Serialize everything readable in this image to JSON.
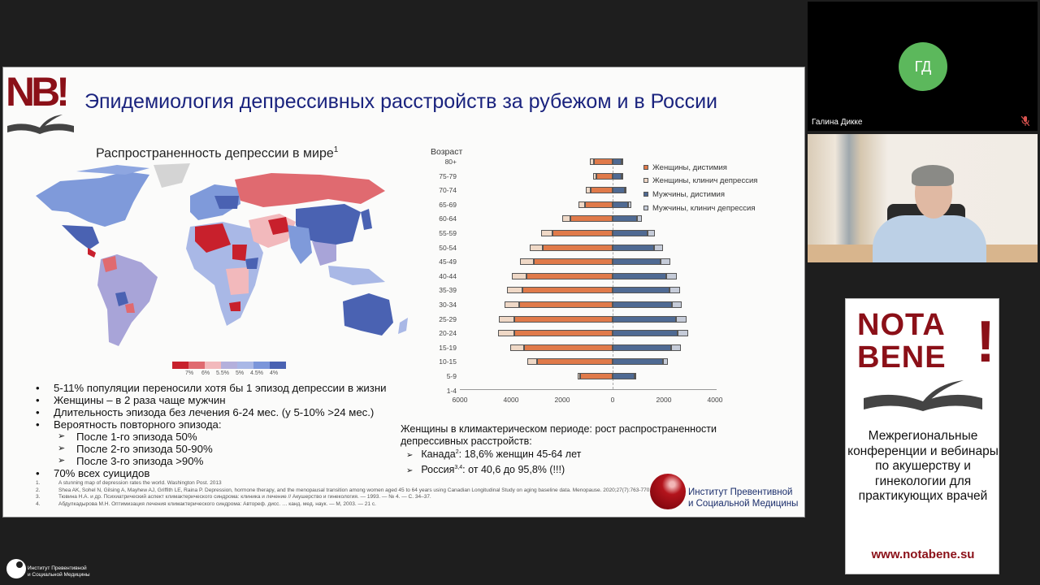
{
  "slide": {
    "logo": "NB!",
    "title": "Эпидемиология депрессивных расстройств за рубежом и в России",
    "map": {
      "title": "Распространенность депрессии в мире",
      "title_sup": "1",
      "scale_colors": [
        "#c8202c",
        "#e06a70",
        "#f2b9bc",
        "#b4b0dc",
        "#a9b8e6",
        "#7b96da",
        "#4a62b2"
      ],
      "scale_labels": [
        "7%",
        "6%",
        "5.5%",
        "5%",
        "4.5%",
        "4%"
      ]
    },
    "bullets": [
      {
        "text": "5-11% популяции переносили хотя бы 1 эпизод депрессии в жизни",
        "level": 1
      },
      {
        "text": "Женщины – в 2 раза чаще мужчин",
        "level": 1
      },
      {
        "text": "Длительность эпизода без лечения 6-24 мес. (у 5-10% >24 мес.)",
        "level": 1
      },
      {
        "text": "Вероятность повторного эпизода:",
        "level": 1
      },
      {
        "text": "После 1-го эпизода 50%",
        "level": 2
      },
      {
        "text": "После 2-го эпизода 50-90%",
        "level": 2
      },
      {
        "text": "После 3-го эпизода >90%",
        "level": 2
      },
      {
        "text": "70% всех суицидов",
        "level": 1
      }
    ],
    "references": [
      {
        "n": "1.",
        "text": "A stunning map of depression rates the world. Washington Post. 2013"
      },
      {
        "n": "2.",
        "text": "Shea AK, Sohel N, Gilsing A, Mayhew AJ, Griffith LE, Raina P. Depression, hormone therapy, and the menopausal transition among women aged 45 to 64 years using Canadian Longitudinal Study on aging baseline data. Menopause. 2020;27(7):763-770."
      },
      {
        "n": "3.",
        "text": "Тювина Н.А. и др. Психиатрический аспект климактерического синдрома: клиника и лечение // Акушерство и гинекология. — 1993. — № 4. — С. 34–37."
      },
      {
        "n": "4.",
        "text": "Абдулкадырова М.Н. Оптимизация лечения климактерического синдрома: Автореф. дисс. … канд. мед. наук. — М, 2003. — 21 с."
      }
    ],
    "climax": {
      "line1": "Женщины в климактерическом периоде: рост распространенности",
      "line2": "депрессивных расстройств:",
      "canada_label": "Канада",
      "canada_sup": "2",
      "canada_text": ": 18,6% женщин 45-64 лет",
      "russia_label": "Россия",
      "russia_sup": "3,4",
      "russia_text": ": от 40,6 до 95,8% (!!!)"
    },
    "institute": {
      "line1": "Институт Превентивной",
      "line2": "и Социальной Медицины"
    }
  },
  "chart_data": {
    "type": "bar",
    "subtype": "population-pyramid-stacked-horizontal",
    "ylabel": "Возраст",
    "xlabel": "",
    "categories": [
      "80+",
      "75-79",
      "70-74",
      "65-69",
      "60-64",
      "55-59",
      "50-54",
      "45-49",
      "40-44",
      "35-39",
      "30-34",
      "25-29",
      "20-24",
      "15-19",
      "10-15",
      "5-9",
      "1-4"
    ],
    "xticks": [
      "6000",
      "4000",
      "2000",
      "0",
      "2000",
      "4000"
    ],
    "xlim": [
      -6000,
      4000
    ],
    "legend": [
      "Женщины,  дистимия",
      "Женщины,  клинич депрессия",
      "Мужчины,  дистимия",
      "Мужчины,  клинич депрессия"
    ],
    "series": [
      {
        "name": "Женщины,  дистимия",
        "side": "left",
        "color": "#e07a4a",
        "values": [
          730,
          635,
          860,
          1080,
          1650,
          2350,
          2730,
          3080,
          3370,
          3520,
          3650,
          3840,
          3840,
          3460,
          2950,
          1270,
          0
        ]
      },
      {
        "name": "Женщины,  клинич депрессия",
        "side": "left",
        "color": "#efd8c6",
        "values": [
          160,
          125,
          190,
          250,
          320,
          440,
          510,
          540,
          570,
          610,
          570,
          600,
          640,
          540,
          380,
          95,
          0
        ]
      },
      {
        "name": "Мужчины,  дистимия",
        "side": "right",
        "color": "#4f6a93",
        "values": [
          350,
          350,
          480,
          600,
          950,
          1365,
          1620,
          1870,
          2100,
          2220,
          2320,
          2480,
          2540,
          2290,
          1970,
          860,
          0
        ]
      },
      {
        "name": "Мужчины,  клинич депрессия",
        "side": "right",
        "color": "#c5cbd8",
        "values": [
          60,
          60,
          60,
          130,
          190,
          285,
          350,
          380,
          400,
          410,
          380,
          410,
          410,
          380,
          190,
          30,
          0
        ]
      }
    ],
    "grid": false,
    "legend_position": "top-right"
  },
  "participants": [
    {
      "name": "Галина Дикке",
      "initials": "ГД",
      "avatar_color": "#5cb85c",
      "muted": true,
      "video": false
    },
    {
      "name": "",
      "video": true
    }
  ],
  "ad": {
    "brand_line1": "NOTA",
    "brand_line2": "BENE",
    "brand_excl": "!",
    "description": "Межрегиональные конференции и вебинары по акушерству и гинекологии для практикующих врачей",
    "url": "www.notabene.su"
  },
  "watermark": {
    "line1": "Институт Превентивной",
    "line2": "и Социальной Медицины"
  }
}
